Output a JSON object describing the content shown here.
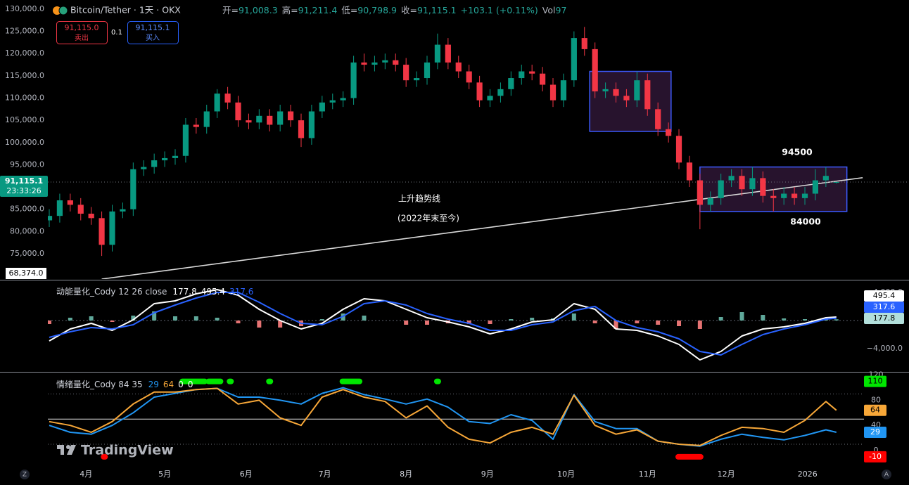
{
  "header": {
    "symbol": "Bitcoin/Tether · 1天 · OKX",
    "ohlc": [
      {
        "key": "开=",
        "value": "91,008.3"
      },
      {
        "key": "高=",
        "value": "91,211.4"
      },
      {
        "key": "低=",
        "value": "90,798.9"
      },
      {
        "key": "收=",
        "value": "91,115.1"
      }
    ],
    "change": "+103.1 (+0.11%)",
    "volume": {
      "key": "Vol",
      "value": "97"
    },
    "sell": {
      "price": "91,115.0",
      "label": "卖出"
    },
    "spread": "0.1",
    "buy": {
      "price": "91,115.1",
      "label": "买入"
    },
    "watermark": "TradingView",
    "left_button": "Z",
    "right_button": "A"
  },
  "chart_data": [
    {
      "type": "candlestick",
      "up_color": "#089981",
      "down_color": "#f23645",
      "x": [
        0,
        4,
        8,
        12,
        16,
        20,
        24,
        28,
        32,
        36,
        40,
        44,
        48,
        52,
        56,
        60,
        64,
        68,
        72,
        76,
        80,
        84,
        88,
        92,
        96,
        100,
        104,
        108,
        112,
        116,
        120,
        124,
        128,
        132,
        136,
        140,
        144,
        148,
        152,
        156,
        160,
        164,
        168,
        172,
        176,
        180,
        184,
        188,
        192,
        196,
        200,
        204,
        208,
        212,
        216,
        220,
        224,
        228,
        232,
        236,
        240,
        244,
        248,
        252,
        256,
        260,
        264,
        268,
        272,
        276,
        280,
        284,
        288,
        292,
        296,
        300
      ],
      "open": [
        82500,
        83500,
        87000,
        86000,
        84000,
        83000,
        77000,
        84500,
        85000,
        94000,
        94500,
        96000,
        96500,
        97000,
        104000,
        103500,
        107000,
        111000,
        109000,
        105000,
        104500,
        106000,
        104000,
        107000,
        105000,
        101000,
        107000,
        109000,
        109500,
        110000,
        118000,
        117500,
        118000,
        118500,
        117500,
        114000,
        114500,
        118000,
        122000,
        118000,
        116000,
        113500,
        109500,
        110500,
        112000,
        114500,
        116000,
        115500,
        113000,
        109500,
        114000,
        123500,
        121000,
        111500,
        112000,
        110500,
        109500,
        114000,
        107500,
        103000,
        101500,
        95500,
        91500,
        86000,
        87500,
        91500,
        92500,
        89500,
        92000,
        88000,
        87500,
        88500,
        87500,
        88500,
        91500,
        91008.3
      ],
      "high": [
        85000,
        88500,
        88500,
        87500,
        85500,
        84500,
        86000,
        86500,
        95500,
        96000,
        97500,
        98000,
        98500,
        105500,
        105500,
        108500,
        112000,
        112500,
        110500,
        106500,
        107500,
        107500,
        108500,
        108500,
        106500,
        108500,
        110500,
        111000,
        111500,
        119500,
        120000,
        119500,
        120000,
        120000,
        119000,
        116000,
        119500,
        124500,
        123500,
        119500,
        117500,
        115000,
        112000,
        113500,
        116000,
        117500,
        117500,
        117000,
        114500,
        115500,
        125000,
        126000,
        122500,
        113500,
        113500,
        112000,
        116000,
        115500,
        109000,
        104500,
        103000,
        97000,
        93000,
        89000,
        93000,
        94000,
        94000,
        94500,
        93500,
        89500,
        90000,
        90000,
        90000,
        94000,
        94500,
        91211.4
      ],
      "low": [
        81000,
        82000,
        84500,
        82500,
        81500,
        74500,
        75500,
        83000,
        83500,
        92500,
        93000,
        94500,
        95000,
        95500,
        102000,
        102000,
        105500,
        107500,
        103500,
        103000,
        103000,
        102500,
        102500,
        103500,
        99000,
        99500,
        105500,
        107500,
        108000,
        108500,
        116000,
        116000,
        116500,
        116000,
        112500,
        112500,
        113000,
        116500,
        116500,
        114500,
        112000,
        108000,
        108000,
        109000,
        110500,
        113000,
        114000,
        111500,
        108000,
        108000,
        112500,
        119500,
        110000,
        110000,
        109000,
        108000,
        108000,
        106000,
        101500,
        100000,
        94000,
        90000,
        80500,
        84500,
        86000,
        90000,
        88000,
        88000,
        86500,
        84500,
        86000,
        86000,
        86000,
        87000,
        90000,
        90798.9
      ],
      "close": [
        83500,
        87000,
        86000,
        84000,
        83000,
        77000,
        84500,
        85000,
        94000,
        94500,
        96000,
        96500,
        97000,
        104000,
        103500,
        107000,
        111000,
        109000,
        105000,
        104500,
        106000,
        104000,
        107000,
        105000,
        101000,
        107000,
        109000,
        109500,
        110000,
        118000,
        117500,
        118000,
        118500,
        117500,
        114000,
        114500,
        118000,
        122000,
        118000,
        116000,
        113500,
        109500,
        110500,
        112000,
        114500,
        116000,
        115500,
        113000,
        109500,
        114000,
        123500,
        121000,
        111500,
        112000,
        110500,
        109500,
        114000,
        107500,
        103000,
        101500,
        95500,
        91500,
        86000,
        87500,
        91500,
        92500,
        89500,
        92000,
        88000,
        87500,
        88500,
        87500,
        88500,
        91500,
        92500,
        91115.1
      ],
      "xlim": [
        0,
        325
      ],
      "xticks": [
        {
          "value": 14,
          "label": "4月"
        },
        {
          "value": 44,
          "label": "5月"
        },
        {
          "value": 75,
          "label": "6月"
        },
        {
          "value": 105,
          "label": "7月"
        },
        {
          "value": 136,
          "label": "8月"
        },
        {
          "value": 167,
          "label": "9月"
        },
        {
          "value": 197,
          "label": "10月"
        },
        {
          "value": 228,
          "label": "11月"
        },
        {
          "value": 258,
          "label": "12月"
        },
        {
          "value": 289,
          "label": "2026"
        }
      ],
      "ylim": [
        69300,
        132050
      ],
      "yticks": [
        {
          "value": 75000,
          "label": "75,000.0"
        },
        {
          "value": 80000,
          "label": "80,000.0"
        },
        {
          "value": 85000,
          "label": "85,000.0"
        },
        {
          "value": 90000,
          "label": "90,000.0"
        },
        {
          "value": 95000,
          "label": "95,000.0"
        },
        {
          "value": 100000,
          "label": "100,000.0"
        },
        {
          "value": 105000,
          "label": "105,000.0"
        },
        {
          "value": 110000,
          "label": "110,000.0"
        },
        {
          "value": 115000,
          "label": "115,000.0"
        },
        {
          "value": 120000,
          "label": "120,000.0"
        },
        {
          "value": 125000,
          "label": "125,000.0"
        },
        {
          "value": 130000,
          "label": "130,000.0"
        }
      ],
      "last_price": {
        "value": 91115.1,
        "label": "91,115.1"
      },
      "countdown": "23:33:26",
      "axis_tag": {
        "value": 68374,
        "label": "68,374.0"
      },
      "trendline": {
        "color": "#d9d9d9",
        "x": [
          20,
          310
        ],
        "y": [
          69300,
          92100
        ]
      },
      "boxes": [
        {
          "color": "#3d5afe",
          "fill": "rgba(120,60,140,0.32)",
          "x": [
            206,
            237
          ],
          "y": [
            102500,
            116000
          ]
        },
        {
          "color": "#3d5afe",
          "fill": "rgba(120,60,140,0.32)",
          "x": [
            248,
            304
          ],
          "y": [
            84500,
            94500
          ]
        }
      ],
      "annotations": [
        "上升趋势线",
        "(2022年末至今)",
        94500,
        84000
      ]
    },
    {
      "type": "macd",
      "title": "动能量化_Cody 12 26 close",
      "x": [
        0,
        8,
        16,
        24,
        32,
        40,
        48,
        56,
        64,
        72,
        80,
        88,
        96,
        104,
        112,
        120,
        128,
        136,
        144,
        152,
        160,
        168,
        176,
        184,
        192,
        200,
        208,
        216,
        224,
        232,
        240,
        248,
        256,
        264,
        272,
        280,
        288,
        296,
        300
      ],
      "series": [
        {
          "color": "#ffffff",
          "values": [
            -2900,
            -1200,
            -400,
            -1400,
            100,
            2400,
            2800,
            3800,
            4400,
            3600,
            1600,
            0,
            -1200,
            -400,
            1600,
            3100,
            2800,
            1600,
            400,
            -200,
            -900,
            -1900,
            -1200,
            -200,
            100,
            2400,
            1600,
            -1200,
            -1400,
            -2200,
            -3400,
            -5600,
            -4400,
            -2200,
            -1200,
            -900,
            -400,
            400,
            495.4
          ]
        },
        {
          "color": "#2962ff",
          "values": [
            -2400,
            -1600,
            -1000,
            -1200,
            -600,
            1100,
            2200,
            3200,
            4000,
            4000,
            2600,
            1000,
            -400,
            -600,
            600,
            2400,
            2800,
            2200,
            1000,
            200,
            -400,
            -1400,
            -1400,
            -600,
            -200,
            1400,
            2000,
            0,
            -1000,
            -1600,
            -2600,
            -4400,
            -4900,
            -3400,
            -2000,
            -1200,
            -600,
            200,
            317.6
          ]
        }
      ],
      "histogram": {
        "up_color": "#5fa89a",
        "down_color": "#e57373",
        "values": [
          -500,
          400,
          600,
          -200,
          700,
          1300,
          600,
          600,
          400,
          -400,
          -1000,
          -1000,
          -800,
          200,
          1000,
          700,
          0,
          -600,
          -600,
          -400,
          -500,
          -500,
          200,
          400,
          300,
          1000,
          -400,
          -1200,
          -400,
          -600,
          -800,
          -1200,
          500,
          1200,
          800,
          300,
          200,
          200,
          177.8
        ]
      },
      "xlim": [
        0,
        325
      ],
      "ylim": [
        -7200,
        5600
      ],
      "yticks": [
        {
          "value": 4000,
          "label": "4,000.0"
        },
        {
          "value": -4000,
          "label": "−4,000.0"
        }
      ]
    },
    {
      "type": "oscillator",
      "title": "情绪量化_Cody 84 35",
      "x": [
        0,
        8,
        16,
        24,
        32,
        40,
        48,
        56,
        64,
        72,
        80,
        88,
        96,
        104,
        112,
        120,
        128,
        136,
        144,
        152,
        160,
        168,
        176,
        184,
        192,
        200,
        208,
        216,
        224,
        232,
        240,
        248,
        256,
        264,
        272,
        280,
        288,
        296,
        300
      ],
      "series": [
        {
          "color": "#2196f3",
          "values": [
            40,
            29,
            26,
            40,
            60,
            85,
            91,
            97,
            99,
            85,
            85,
            80,
            74,
            91,
            100,
            89,
            82,
            74,
            82,
            69,
            46,
            43,
            57,
            48,
            18,
            89,
            46,
            35,
            35,
            15,
            10,
            7,
            18,
            26,
            21,
            17,
            24,
            33,
            29
          ]
        },
        {
          "color": "#f7a738",
          "values": [
            46,
            40,
            29,
            46,
            74,
            93,
            93,
            97,
            99,
            74,
            80,
            52,
            40,
            85,
            97,
            85,
            78,
            52,
            71,
            37,
            18,
            12,
            29,
            37,
            26,
            88,
            40,
            26,
            33,
            15,
            10,
            8,
            24,
            37,
            35,
            29,
            48,
            78,
            64
          ]
        }
      ],
      "top_signals": {
        "color": "#00e600",
        "value": 110,
        "current": 0,
        "ranges": [
          [
            51,
            59
          ],
          [
            61,
            65
          ],
          [
            69,
            69
          ],
          [
            84,
            84
          ],
          [
            112,
            118
          ],
          [
            148,
            148
          ]
        ]
      },
      "bottom_signals": {
        "color": "#ff0000",
        "value": -10,
        "current": 0,
        "ranges": [
          [
            21,
            21
          ],
          [
            240,
            248
          ]
        ]
      },
      "levels": [
        {
          "value": 90,
          "dash": true
        },
        {
          "value": 50,
          "dash": false
        },
        {
          "value": 10,
          "dash": true
        }
      ],
      "xlim": [
        0,
        325
      ],
      "ylim": [
        -28,
        123
      ],
      "yticks": [
        120,
        80,
        40,
        0
      ]
    }
  ]
}
